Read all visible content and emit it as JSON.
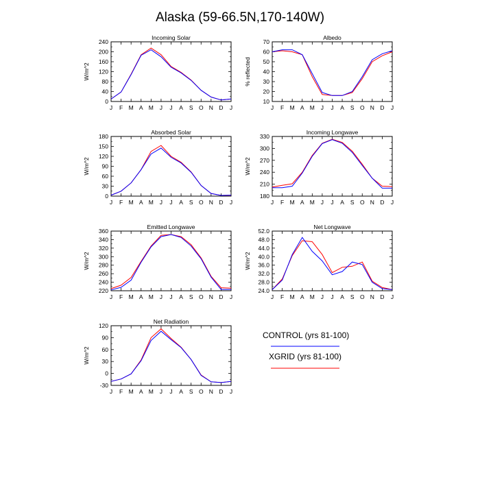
{
  "figure": {
    "title": "Alaska (59-66.5N,170-140W)"
  },
  "legend": {
    "entries": [
      {
        "name": "CONTROL (yrs 81-100)",
        "color": "#0000ff"
      },
      {
        "name": "XGRID (yrs 81-100)",
        "color": "#ff0000"
      }
    ]
  },
  "chart_data": [
    {
      "type": "line",
      "title": "Incoming Solar",
      "ylabel": "W/m^2",
      "categories": [
        "J",
        "F",
        "M",
        "A",
        "M",
        "J",
        "J",
        "A",
        "S",
        "O",
        "N",
        "D",
        "J"
      ],
      "ylim": [
        0,
        240
      ],
      "yticks": [
        "0",
        "40",
        "80",
        "120",
        "160",
        "200",
        "240"
      ],
      "series": [
        {
          "name": "CONTROL (yrs 81-100)",
          "color": "#0000ff",
          "values": [
            10,
            38,
            108,
            186,
            208,
            180,
            138,
            115,
            85,
            45,
            18,
            6,
            10
          ]
        },
        {
          "name": "XGRID (yrs 81-100)",
          "color": "#ff0000",
          "values": [
            10,
            38,
            110,
            188,
            215,
            188,
            141,
            117,
            86,
            45,
            18,
            6,
            10
          ]
        }
      ]
    },
    {
      "type": "line",
      "title": "Albedo",
      "ylabel": "% reflected",
      "categories": [
        "J",
        "F",
        "M",
        "A",
        "M",
        "J",
        "J",
        "A",
        "S",
        "O",
        "N",
        "D",
        "J"
      ],
      "ylim": [
        10,
        70
      ],
      "yticks": [
        "10",
        "20",
        "30",
        "40",
        "50",
        "60",
        "70"
      ],
      "series": [
        {
          "name": "CONTROL (yrs 81-100)",
          "color": "#0000ff",
          "values": [
            60,
            62,
            62,
            57,
            38,
            19,
            16,
            16,
            20,
            35,
            52,
            58,
            61
          ]
        },
        {
          "name": "XGRID (yrs 81-100)",
          "color": "#ff0000",
          "values": [
            60,
            61,
            60,
            57,
            35,
            17,
            16,
            16,
            19,
            33,
            50,
            56,
            60
          ]
        }
      ]
    },
    {
      "type": "line",
      "title": "Absorbed Solar",
      "ylabel": "W/m^2",
      "categories": [
        "J",
        "F",
        "M",
        "A",
        "M",
        "J",
        "J",
        "A",
        "S",
        "O",
        "N",
        "D",
        "J"
      ],
      "ylim": [
        0,
        180
      ],
      "yticks": [
        "0",
        "30",
        "60",
        "90",
        "120",
        "150",
        "180"
      ],
      "series": [
        {
          "name": "CONTROL (yrs 81-100)",
          "color": "#0000ff",
          "values": [
            3,
            15,
            40,
            80,
            127,
            145,
            117,
            100,
            72,
            32,
            8,
            2,
            3
          ]
        },
        {
          "name": "XGRID (yrs 81-100)",
          "color": "#ff0000",
          "values": [
            3,
            15,
            40,
            80,
            135,
            153,
            120,
            102,
            73,
            32,
            8,
            2,
            3
          ]
        }
      ]
    },
    {
      "type": "line",
      "title": "Incoming Longwave",
      "ylabel": "W/m^2",
      "categories": [
        "J",
        "F",
        "M",
        "A",
        "M",
        "J",
        "J",
        "A",
        "S",
        "O",
        "N",
        "D",
        "J"
      ],
      "ylim": [
        180,
        330
      ],
      "yticks": [
        "180",
        "210",
        "240",
        "270",
        "300",
        "330"
      ],
      "series": [
        {
          "name": "CONTROL (yrs 81-100)",
          "color": "#0000ff",
          "values": [
            201,
            201,
            205,
            238,
            280,
            312,
            322,
            313,
            290,
            257,
            225,
            200,
            200
          ]
        },
        {
          "name": "XGRID (yrs 81-100)",
          "color": "#ff0000",
          "values": [
            203,
            207,
            211,
            240,
            282,
            313,
            323,
            315,
            293,
            260,
            225,
            205,
            204
          ]
        }
      ]
    },
    {
      "type": "line",
      "title": "Emitted Longwave",
      "ylabel": "W/m^2",
      "categories": [
        "J",
        "F",
        "M",
        "A",
        "M",
        "J",
        "J",
        "A",
        "S",
        "O",
        "N",
        "D",
        "J"
      ],
      "ylim": [
        220,
        360
      ],
      "yticks": [
        "220",
        "240",
        "260",
        "280",
        "300",
        "320",
        "340",
        "360"
      ],
      "series": [
        {
          "name": "CONTROL (yrs 81-100)",
          "color": "#0000ff",
          "values": [
            222,
            228,
            245,
            287,
            323,
            347,
            352,
            345,
            325,
            295,
            252,
            223,
            223
          ]
        },
        {
          "name": "XGRID (yrs 81-100)",
          "color": "#ff0000",
          "values": [
            225,
            233,
            251,
            289,
            325,
            350,
            352,
            347,
            328,
            297,
            254,
            227,
            226
          ]
        }
      ]
    },
    {
      "type": "line",
      "title": "Net Longwave",
      "ylabel": "W/m^2",
      "categories": [
        "J",
        "F",
        "M",
        "A",
        "M",
        "J",
        "J",
        "A",
        "S",
        "O",
        "N",
        "D",
        "J"
      ],
      "ylim": [
        24,
        52
      ],
      "yticks": [
        "24.0",
        "28.0",
        "32.0",
        "36.0",
        "40.0",
        "44.0",
        "48.0",
        "52.0"
      ],
      "series": [
        {
          "name": "CONTROL (yrs 81-100)",
          "color": "#0000ff",
          "values": [
            24.5,
            29,
            41,
            49,
            42.5,
            38,
            31.5,
            33,
            37.5,
            36.3,
            28,
            25,
            24.5
          ]
        },
        {
          "name": "XGRID (yrs 81-100)",
          "color": "#ff0000",
          "values": [
            24.5,
            29.5,
            40.5,
            47.5,
            47,
            41,
            32.5,
            35,
            35.5,
            37.5,
            28.5,
            25.5,
            24.5
          ]
        }
      ]
    },
    {
      "type": "line",
      "title": "Net Radiation",
      "ylabel": "W/m^2",
      "categories": [
        "J",
        "F",
        "M",
        "A",
        "M",
        "J",
        "J",
        "A",
        "S",
        "O",
        "N",
        "D",
        "J"
      ],
      "ylim": [
        -30,
        120
      ],
      "yticks": [
        "-30",
        "0",
        "30",
        "60",
        "90",
        "120"
      ],
      "series": [
        {
          "name": "CONTROL (yrs 81-100)",
          "color": "#0000ff",
          "values": [
            -20,
            -14,
            -1,
            32,
            83,
            106,
            85,
            65,
            35,
            -5,
            -21,
            -23,
            -20
          ]
        },
        {
          "name": "XGRID (yrs 81-100)",
          "color": "#ff0000",
          "values": [
            -20,
            -14,
            -1,
            34,
            90,
            112,
            88,
            66,
            35,
            -4,
            -21,
            -23,
            -20
          ]
        }
      ]
    }
  ]
}
